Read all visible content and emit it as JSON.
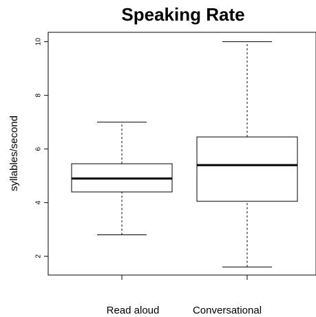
{
  "chart_data": {
    "type": "boxplot",
    "title": "Speaking Rate",
    "xlabel": "",
    "ylabel": "syllables/second",
    "ylim": [
      1.3,
      10.35
    ],
    "yticks": [
      2,
      4,
      6,
      8,
      10
    ],
    "grid": false,
    "categories": [
      "Read aloud",
      "Conversational"
    ],
    "boxes": [
      {
        "category": "Read aloud",
        "min": 2.8,
        "q1": 4.4,
        "median": 4.9,
        "q3": 5.45,
        "max": 7.0
      },
      {
        "category": "Conversational",
        "min": 1.6,
        "q1": 4.05,
        "median": 5.4,
        "q3": 6.45,
        "max": 10.0
      }
    ]
  }
}
